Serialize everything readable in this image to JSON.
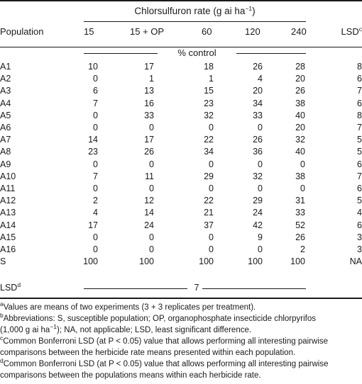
{
  "header": {
    "rate_title_main": "Chlorsulfuron rate (g ai ha",
    "rate_title_exp": "−1",
    "rate_title_close": ")",
    "population_label": "Population",
    "columns": [
      "15",
      "15 + OP",
      "60",
      "120",
      "240"
    ],
    "lsd_label": "LSD",
    "lsd_sup": "c"
  },
  "unit_span": "% control",
  "rows": [
    {
      "pop": "A1",
      "values": [
        "10",
        "17",
        "18",
        "26",
        "28"
      ],
      "lsd": "8"
    },
    {
      "pop": "A2",
      "values": [
        "0",
        "1",
        "1",
        "4",
        "20"
      ],
      "lsd": "6"
    },
    {
      "pop": "A3",
      "values": [
        "6",
        "13",
        "15",
        "20",
        "26"
      ],
      "lsd": "7"
    },
    {
      "pop": "A4",
      "values": [
        "7",
        "16",
        "23",
        "34",
        "38"
      ],
      "lsd": "6"
    },
    {
      "pop": "A5",
      "values": [
        "0",
        "33",
        "32",
        "33",
        "40"
      ],
      "lsd": "8"
    },
    {
      "pop": "A6",
      "values": [
        "0",
        "0",
        "0",
        "0",
        "20"
      ],
      "lsd": "7"
    },
    {
      "pop": "A7",
      "values": [
        "14",
        "17",
        "22",
        "26",
        "32"
      ],
      "lsd": "5"
    },
    {
      "pop": "A8",
      "values": [
        "23",
        "26",
        "34",
        "36",
        "40"
      ],
      "lsd": "5"
    },
    {
      "pop": "A9",
      "values": [
        "0",
        "0",
        "0",
        "0",
        "0"
      ],
      "lsd": "6"
    },
    {
      "pop": "A10",
      "values": [
        "7",
        "11",
        "29",
        "32",
        "38"
      ],
      "lsd": "7"
    },
    {
      "pop": "A11",
      "values": [
        "0",
        "0",
        "0",
        "0",
        "0"
      ],
      "lsd": "6"
    },
    {
      "pop": "A12",
      "values": [
        "2",
        "12",
        "22",
        "29",
        "31"
      ],
      "lsd": "5"
    },
    {
      "pop": "A13",
      "values": [
        "4",
        "14",
        "21",
        "24",
        "33"
      ],
      "lsd": "4"
    },
    {
      "pop": "A14",
      "values": [
        "17",
        "24",
        "37",
        "42",
        "52"
      ],
      "lsd": "6"
    },
    {
      "pop": "A15",
      "values": [
        "0",
        "0",
        "0",
        "9",
        "26"
      ],
      "lsd": "3"
    },
    {
      "pop": "A16",
      "values": [
        "0",
        "0",
        "0",
        "0",
        "2"
      ],
      "lsd": "3"
    },
    {
      "pop": "S",
      "values": [
        "100",
        "100",
        "100",
        "100",
        "100"
      ],
      "lsd": "NA"
    }
  ],
  "lsd_row": {
    "label": "LSD",
    "sup": "d",
    "value": "7"
  },
  "footnotes": {
    "a": {
      "mark": "a",
      "lines": [
        "Values are means of two experiments (3 + 3 replicates per treatment)."
      ]
    },
    "b": {
      "mark": "b",
      "lines": [
        "Abbreviations: S, susceptible population; OP, organophosphate insecticide chlorpyrifos",
        "(1,000 g ai ha",
        "−1",
        "); NA, not applicable; LSD, least significant difference."
      ]
    },
    "c": {
      "mark": "c",
      "lines": [
        "Common Bonferroni LSD (at P < 0.05) value that allows performing all interesting pairwise",
        "comparisons between the herbicide rate means presented within each population."
      ]
    },
    "d": {
      "mark": "d",
      "lines": [
        "Common Bonferroni LSD (at P < 0.05) value that allows performing all interesting pairwise",
        "comparisons between the populations means within each herbicide rate."
      ]
    }
  }
}
